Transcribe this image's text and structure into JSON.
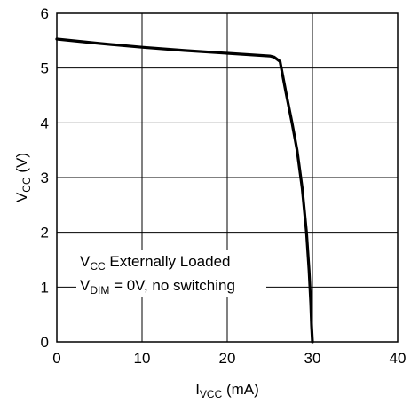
{
  "chart_data": {
    "type": "line",
    "xlabel": {
      "main": "I",
      "sub": "VCC",
      "unit": " (mA)"
    },
    "ylabel": {
      "main": "V",
      "sub": "CC",
      "unit": " (V)"
    },
    "xlim": [
      0,
      40
    ],
    "ylim": [
      0,
      6
    ],
    "xticks": [
      0,
      10,
      20,
      30,
      40
    ],
    "yticks": [
      0,
      1,
      2,
      3,
      4,
      5,
      6
    ],
    "grid": true,
    "series": [
      {
        "x": [
          0,
          5,
          10,
          15,
          20,
          25,
          25.5,
          26.2,
          26.9,
          27.6,
          28.2,
          28.8,
          29.3,
          29.6,
          29.8,
          29.9,
          30.0
        ],
        "y": [
          5.53,
          5.45,
          5.38,
          5.32,
          5.27,
          5.22,
          5.2,
          5.12,
          4.55,
          4.0,
          3.5,
          2.8,
          2.0,
          1.3,
          0.7,
          0.3,
          0.0
        ]
      }
    ],
    "annotation": {
      "line1": {
        "main": "V",
        "sub": "CC",
        "rest": " Externally Loaded"
      },
      "line2": {
        "main": "V",
        "sub": "DIM",
        "rest": " = 0V, no switching"
      }
    },
    "colors": {
      "line": "#000000",
      "grid": "#000000",
      "background": "#ffffff"
    }
  }
}
